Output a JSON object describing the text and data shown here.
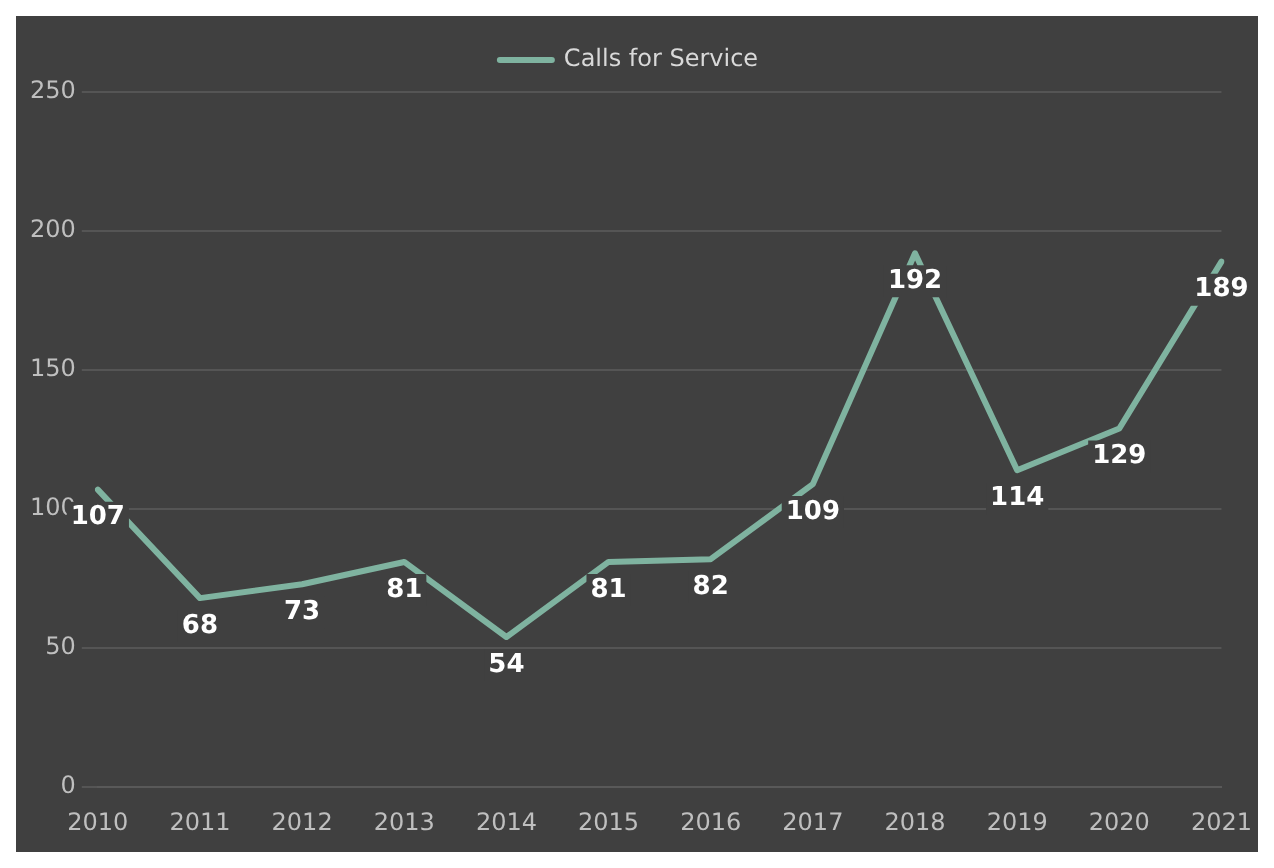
{
  "chart_data": {
    "type": "line",
    "categories": [
      "2010",
      "2011",
      "2012",
      "2013",
      "2014",
      "2015",
      "2016",
      "2017",
      "2018",
      "2019",
      "2020",
      "2021"
    ],
    "series": [
      {
        "name": "Calls for Service",
        "color": "#7fb3a0",
        "values": [
          107,
          68,
          73,
          81,
          54,
          81,
          82,
          109,
          192,
          114,
          129,
          189
        ]
      }
    ],
    "ylim": [
      0,
      250
    ],
    "yticks": [
      0,
      50,
      100,
      150,
      200,
      250
    ],
    "grid": "y",
    "legend": "top",
    "data_labels": true,
    "marker": "none",
    "line_style": "solid"
  }
}
